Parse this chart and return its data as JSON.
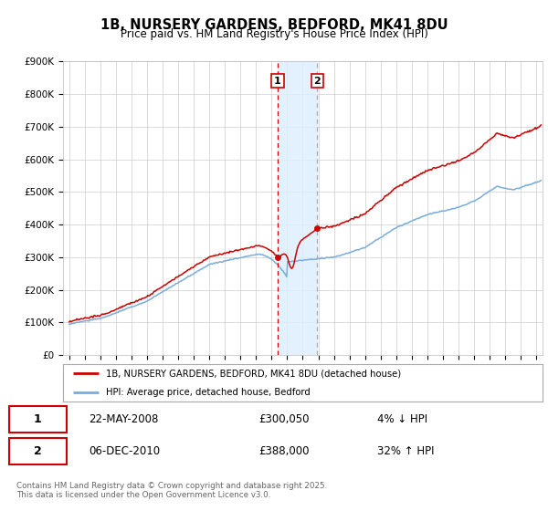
{
  "title": "1B, NURSERY GARDENS, BEDFORD, MK41 8DU",
  "subtitle": "Price paid vs. HM Land Registry's House Price Index (HPI)",
  "ylim": [
    0,
    900000
  ],
  "yticks": [
    0,
    100000,
    200000,
    300000,
    400000,
    500000,
    600000,
    700000,
    800000,
    900000
  ],
  "ytick_labels": [
    "£0",
    "£100K",
    "£200K",
    "£300K",
    "£400K",
    "£500K",
    "£600K",
    "£700K",
    "£800K",
    "£900K"
  ],
  "xlim_start": 1994.6,
  "xlim_end": 2025.4,
  "xticks": [
    1995,
    1996,
    1997,
    1998,
    1999,
    2000,
    2001,
    2002,
    2003,
    2004,
    2005,
    2006,
    2007,
    2008,
    2009,
    2010,
    2011,
    2012,
    2013,
    2014,
    2015,
    2016,
    2017,
    2018,
    2019,
    2020,
    2021,
    2022,
    2023,
    2024,
    2025
  ],
  "line1_color": "#cc0000",
  "line2_color": "#7aaddb",
  "transaction1_date": 2008.39,
  "transaction1_price": 300050,
  "transaction2_date": 2010.92,
  "transaction2_price": 388000,
  "transaction1_date_str": "22-MAY-2008",
  "transaction2_date_str": "06-DEC-2010",
  "transaction1_hpi_pct": "4% ↓ HPI",
  "transaction2_hpi_pct": "32% ↑ HPI",
  "transaction1_price_str": "£300,050",
  "transaction2_price_str": "£388,000",
  "legend1_label": "1B, NURSERY GARDENS, BEDFORD, MK41 8DU (detached house)",
  "legend2_label": "HPI: Average price, detached house, Bedford",
  "footer": "Contains HM Land Registry data © Crown copyright and database right 2025.\nThis data is licensed under the Open Government Licence v3.0.",
  "background_color": "#ffffff",
  "grid_color": "#cccccc",
  "shade_color": "#ddeeff"
}
